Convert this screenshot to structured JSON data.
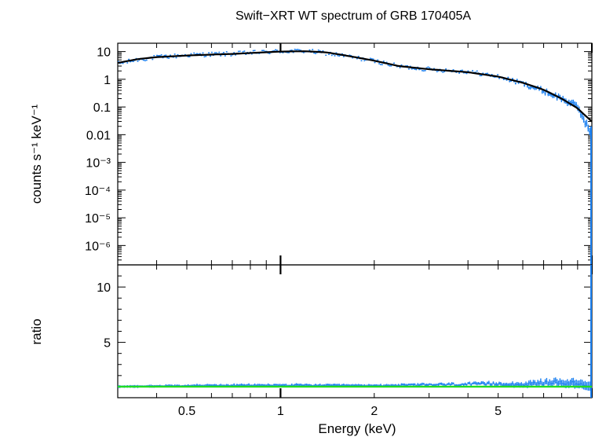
{
  "chart_data": {
    "type": "line",
    "title": "Swift−XRT WT spectrum of GRB 170405A",
    "xlabel": "Energy (keV)",
    "x_scale": "log",
    "xlim": [
      0.3,
      10
    ],
    "x_ticks": [
      {
        "value": 0.5,
        "label": "0.5"
      },
      {
        "value": 1,
        "label": "1"
      },
      {
        "value": 2,
        "label": "2"
      },
      {
        "value": 5,
        "label": "5"
      }
    ],
    "colors": {
      "data": "#1a7ff0",
      "model": "#000000",
      "unity": "#22dd22",
      "frame": "#000000"
    },
    "panels": [
      {
        "name": "spectrum",
        "ylabel": "counts s⁻¹ keV⁻¹",
        "y_scale": "log",
        "ylim": [
          2e-07,
          20
        ],
        "y_ticks": [
          {
            "value": 10,
            "label": "10"
          },
          {
            "value": 1,
            "label": "1"
          },
          {
            "value": 0.1,
            "label": "0.1"
          },
          {
            "value": 0.01,
            "label": "0.01"
          },
          {
            "value": 0.001,
            "label": "10⁻³"
          },
          {
            "value": 0.0001,
            "label": "10⁻⁴"
          },
          {
            "value": 1e-05,
            "label": "10⁻⁵"
          },
          {
            "value": 1e-06,
            "label": "10⁻⁶"
          }
        ],
        "series": [
          {
            "name": "data",
            "x": [
              0.3,
              0.35,
              0.4,
              0.5,
              0.6,
              0.7,
              0.8,
              1.0,
              1.2,
              1.4,
              1.6,
              2.0,
              2.4,
              3.0,
              4.0,
              5.0,
              6.0,
              7.0,
              8.0,
              9.0,
              9.5,
              10.0
            ],
            "y": [
              3.6,
              5.2,
              6.2,
              7.4,
              8.0,
              8.3,
              9.0,
              10.2,
              10.5,
              8.8,
              7.0,
              4.6,
              2.9,
              2.3,
              1.9,
              1.25,
              0.7,
              0.38,
              0.2,
              0.1,
              0.03,
              0.01
            ]
          },
          {
            "name": "model",
            "x": [
              0.3,
              0.35,
              0.4,
              0.5,
              0.6,
              0.7,
              0.8,
              1.0,
              1.2,
              1.4,
              1.6,
              2.0,
              2.4,
              3.0,
              4.0,
              5.0,
              6.0,
              7.0,
              8.0,
              9.0,
              9.5,
              10.0
            ],
            "y": [
              3.9,
              5.4,
              6.3,
              7.2,
              7.8,
              8.2,
              8.9,
              10.0,
              10.3,
              9.4,
              7.4,
              4.7,
              3.0,
              2.3,
              1.8,
              1.25,
              0.75,
              0.42,
              0.2,
              0.09,
              0.05,
              0.03
            ]
          }
        ]
      },
      {
        "name": "ratio",
        "ylabel": "ratio",
        "y_scale": "linear",
        "ylim": [
          0,
          12
        ],
        "y_ticks": [
          {
            "value": 10,
            "label": "10"
          },
          {
            "value": 5,
            "label": "5"
          }
        ],
        "series": [
          {
            "name": "ratio-data",
            "x": [
              0.3,
              0.5,
              1.0,
              2.0,
              3.0,
              4.0,
              5.0,
              6.0,
              7.0,
              8.0,
              9.0,
              10.0
            ],
            "y": [
              1.0,
              1.1,
              1.15,
              1.1,
              1.2,
              1.25,
              1.3,
              1.2,
              1.4,
              1.45,
              1.3,
              1.0
            ]
          },
          {
            "name": "unity-line",
            "x": [
              0.3,
              10.0
            ],
            "y": [
              1.0,
              1.0
            ]
          }
        ]
      }
    ]
  }
}
